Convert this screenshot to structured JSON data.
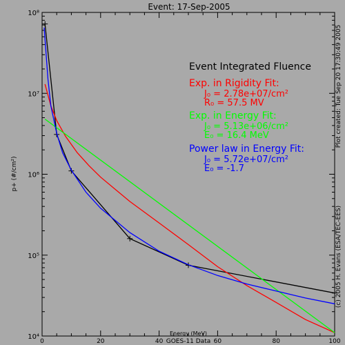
{
  "chart_data": {
    "type": "line",
    "title": "Event: 17-Sep-2005",
    "xlabel": "Energy (MeV)",
    "ylabel": "p+ (#/cm²)",
    "footer": "GOES-11 Data",
    "xlim": [
      0,
      100
    ],
    "ylim": [
      10000,
      100000000
    ],
    "y_scale": "log",
    "x_ticks": [
      0,
      20,
      40,
      60,
      80,
      100
    ],
    "x_tick_labels": [
      "0",
      "20",
      "40",
      "60",
      "80",
      "100"
    ],
    "y_tick_labels": [
      "10⁴",
      "10⁵",
      "10⁶",
      "10⁷",
      "10⁸"
    ],
    "right_text_1": "Plot created: Tue Sep 20 17:30:49 2005",
    "right_text_2": "(c) 2005 H. Evans (ESA/TEC-EES)",
    "annotations": {
      "heading": "Event Integrated Fluence",
      "rigidity": {
        "title": "Exp. in Rigidity Fit:",
        "j0_label": "J₀ = ",
        "j0_value": "2.78e+07/cm²",
        "r0_label": "R₀ = ",
        "r0_value": "57.5 MV",
        "color": "#ff0000"
      },
      "energy": {
        "title": "Exp. in Energy Fit:",
        "j0_label": "J₀ = ",
        "j0_value": "5.13e+06/cm²",
        "e0_label": "E₀ = ",
        "e0_value": "16.4 MeV",
        "color": "#00ff00"
      },
      "power": {
        "title": "Power law in Energy Fit:",
        "j0_label": "J₀ = ",
        "j0_value": "5.72e+07/cm²",
        "e0_label": "E₀ = ",
        "e0_value": "-1.7",
        "color": "#0000ff"
      }
    },
    "series": [
      {
        "color": "#000000",
        "markers": true,
        "x": [
          1,
          5,
          10,
          30,
          50,
          100
        ],
        "y": [
          72000000,
          3100000,
          1100000,
          160000,
          75000,
          34000
        ]
      },
      {
        "color": "#ff0000",
        "markers": false,
        "x": [
          1,
          3,
          5,
          8,
          12,
          16,
          20,
          25,
          30,
          40,
          50,
          60,
          70,
          80,
          90,
          100
        ],
        "y": [
          13000000,
          7000000,
          4600000,
          2950000,
          1850000,
          1280000,
          920000,
          650000,
          460000,
          250000,
          135000,
          72000,
          42000,
          26000,
          16000,
          11000
        ]
      },
      {
        "color": "#00ff00",
        "markers": false,
        "x": [
          1,
          100
        ],
        "y": [
          4800000,
          11000
        ]
      },
      {
        "color": "#0000ff",
        "markers": false,
        "x": [
          0.7,
          1,
          2,
          3,
          5,
          7,
          10,
          15,
          20,
          30,
          40,
          50,
          60,
          70,
          80,
          90,
          100
        ],
        "y": [
          65000000,
          47000000,
          15000000,
          7000000,
          3200000,
          1850000,
          1120000,
          600000,
          380000,
          190000,
          112000,
          76000,
          56000,
          44000,
          36000,
          29500,
          25000
        ]
      }
    ]
  }
}
